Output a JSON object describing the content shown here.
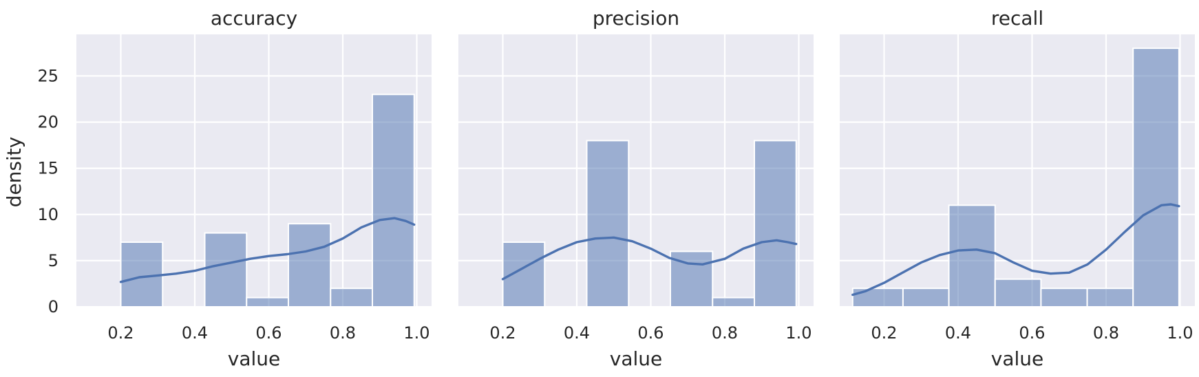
{
  "chart_data": {
    "type": "bar",
    "ylabel": "density",
    "xlabel": "value",
    "color": "#4c72b0",
    "xlim": [
      0.08,
      1.04
    ],
    "ylim": [
      0,
      29.5
    ],
    "x_ticks": [
      0.2,
      0.4,
      0.6,
      0.8,
      1.0
    ],
    "x_tick_labels": [
      "0.2",
      "0.4",
      "0.6",
      "0.8",
      "1.0"
    ],
    "y_ticks": [
      0,
      5,
      10,
      15,
      20,
      25
    ],
    "y_tick_labels": [
      "0",
      "5",
      "10",
      "15",
      "20",
      "25"
    ],
    "panels": [
      {
        "title": "accuracy",
        "bins": [
          {
            "x0": 0.2,
            "x1": 0.313,
            "value": 7
          },
          {
            "x0": 0.313,
            "x1": 0.427,
            "value": 0
          },
          {
            "x0": 0.427,
            "x1": 0.54,
            "value": 8
          },
          {
            "x0": 0.54,
            "x1": 0.653,
            "value": 1
          },
          {
            "x0": 0.653,
            "x1": 0.767,
            "value": 9
          },
          {
            "x0": 0.767,
            "x1": 0.88,
            "value": 2
          },
          {
            "x0": 0.88,
            "x1": 0.993,
            "value": 23
          }
        ],
        "kde": [
          [
            0.2,
            2.7
          ],
          [
            0.25,
            3.2
          ],
          [
            0.3,
            3.4
          ],
          [
            0.35,
            3.6
          ],
          [
            0.4,
            3.9
          ],
          [
            0.45,
            4.4
          ],
          [
            0.5,
            4.8
          ],
          [
            0.55,
            5.2
          ],
          [
            0.6,
            5.5
          ],
          [
            0.65,
            5.7
          ],
          [
            0.7,
            6.0
          ],
          [
            0.75,
            6.5
          ],
          [
            0.8,
            7.4
          ],
          [
            0.85,
            8.6
          ],
          [
            0.9,
            9.4
          ],
          [
            0.94,
            9.6
          ],
          [
            0.97,
            9.3
          ],
          [
            0.993,
            8.9
          ]
        ]
      },
      {
        "title": "precision",
        "bins": [
          {
            "x0": 0.2,
            "x1": 0.313,
            "value": 7
          },
          {
            "x0": 0.313,
            "x1": 0.427,
            "value": 0
          },
          {
            "x0": 0.427,
            "x1": 0.54,
            "value": 18
          },
          {
            "x0": 0.54,
            "x1": 0.653,
            "value": 0
          },
          {
            "x0": 0.653,
            "x1": 0.767,
            "value": 6
          },
          {
            "x0": 0.767,
            "x1": 0.88,
            "value": 1
          },
          {
            "x0": 0.88,
            "x1": 0.993,
            "value": 18
          }
        ],
        "kde": [
          [
            0.2,
            3.0
          ],
          [
            0.25,
            4.1
          ],
          [
            0.3,
            5.2
          ],
          [
            0.35,
            6.2
          ],
          [
            0.4,
            7.0
          ],
          [
            0.45,
            7.4
          ],
          [
            0.5,
            7.5
          ],
          [
            0.55,
            7.1
          ],
          [
            0.6,
            6.3
          ],
          [
            0.65,
            5.3
          ],
          [
            0.7,
            4.7
          ],
          [
            0.74,
            4.6
          ],
          [
            0.8,
            5.2
          ],
          [
            0.85,
            6.3
          ],
          [
            0.9,
            7.0
          ],
          [
            0.94,
            7.2
          ],
          [
            0.97,
            7.0
          ],
          [
            0.993,
            6.8
          ]
        ]
      },
      {
        "title": "recall",
        "bins": [
          {
            "x0": 0.115,
            "x1": 0.251,
            "value": 2
          },
          {
            "x0": 0.251,
            "x1": 0.375,
            "value": 2
          },
          {
            "x0": 0.375,
            "x1": 0.5,
            "value": 11
          },
          {
            "x0": 0.5,
            "x1": 0.624,
            "value": 3
          },
          {
            "x0": 0.624,
            "x1": 0.749,
            "value": 2
          },
          {
            "x0": 0.749,
            "x1": 0.873,
            "value": 2
          },
          {
            "x0": 0.873,
            "x1": 0.997,
            "value": 28
          }
        ],
        "kde": [
          [
            0.115,
            1.3
          ],
          [
            0.15,
            1.7
          ],
          [
            0.2,
            2.6
          ],
          [
            0.25,
            3.7
          ],
          [
            0.3,
            4.8
          ],
          [
            0.35,
            5.6
          ],
          [
            0.4,
            6.1
          ],
          [
            0.45,
            6.2
          ],
          [
            0.5,
            5.8
          ],
          [
            0.55,
            4.8
          ],
          [
            0.6,
            3.9
          ],
          [
            0.65,
            3.6
          ],
          [
            0.7,
            3.7
          ],
          [
            0.75,
            4.6
          ],
          [
            0.8,
            6.2
          ],
          [
            0.85,
            8.1
          ],
          [
            0.9,
            9.9
          ],
          [
            0.95,
            11.0
          ],
          [
            0.975,
            11.1
          ],
          [
            0.997,
            10.9
          ]
        ]
      }
    ]
  }
}
